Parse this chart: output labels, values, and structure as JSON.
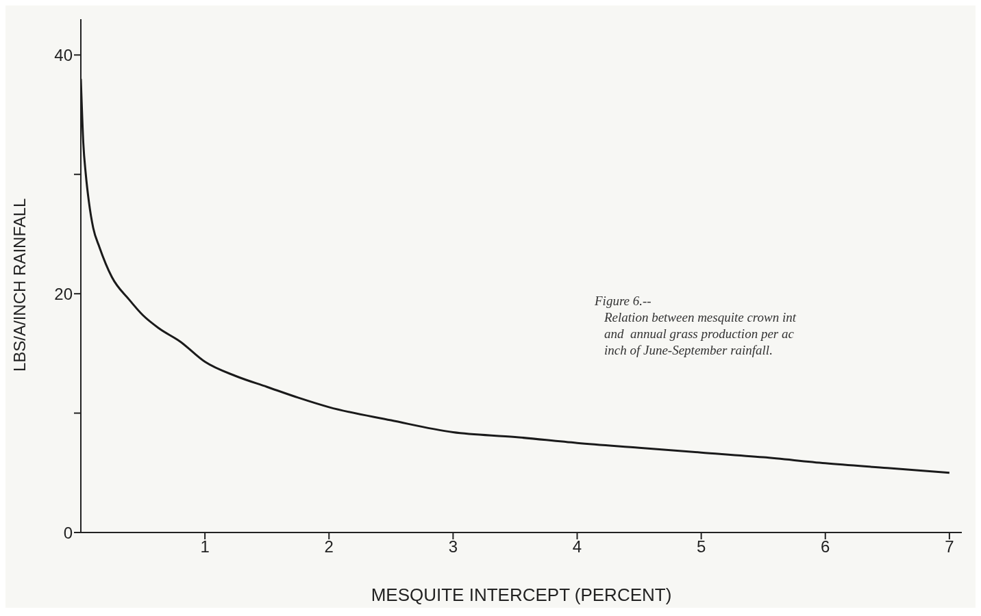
{
  "chart_data": {
    "type": "line",
    "xlabel": "MESQUITE INTERCEPT (PERCENT)",
    "ylabel": "LBS/A/INCH RAINFALL",
    "x": [
      0,
      0.02,
      0.04,
      0.065,
      0.1,
      0.15,
      0.25,
      0.39,
      0.5,
      0.63,
      0.8,
      1,
      1.25,
      1.5,
      1.75,
      2,
      2.5,
      3,
      3.5,
      4,
      4.5,
      5,
      5.5,
      6,
      6.5,
      7
    ],
    "series": [
      {
        "color": "#1a1a1a",
        "values": [
          38,
          32.6,
          30,
          27.7,
          25.5,
          23.9,
          21.4,
          19.5,
          18.2,
          17.1,
          16,
          14.3,
          13.1,
          12.2,
          11.3,
          10.5,
          9.4,
          8.4,
          8,
          7.5,
          7.1,
          6.7,
          6.3,
          5.8,
          5.4,
          5
        ]
      }
    ],
    "xlim": [
      0,
      7.1
    ],
    "xticks": [
      1,
      2,
      3,
      4,
      5,
      6,
      7
    ],
    "ylim": [
      0,
      43
    ],
    "yticks": [
      0,
      {
        "value": 10,
        "label": null
      },
      20,
      {
        "value": 30,
        "label": null
      },
      40
    ],
    "grid": false,
    "legend": false,
    "marker": "none",
    "line_style": "solid",
    "annotations": [
      "Figure 6.--",
      "Relation between mesquite crown int",
      "and  annual grass production per ac",
      "inch of June-September rainfall."
    ]
  }
}
